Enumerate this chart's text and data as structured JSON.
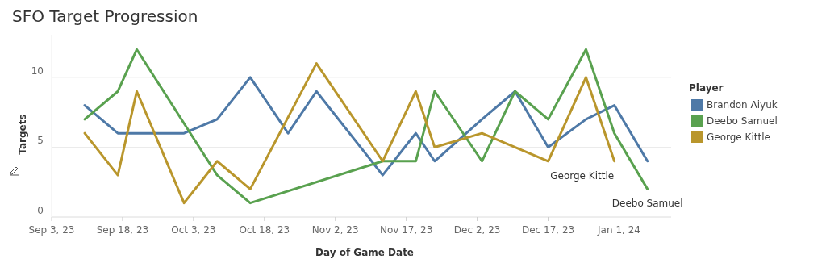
{
  "chart_data": {
    "type": "line",
    "title": "SFO Target Progression",
    "xlabel": "Day of Game Date",
    "ylabel": "Targets",
    "legend_title": "Player",
    "legend": "right",
    "grid": "y",
    "ylim": [
      0,
      13
    ],
    "yticks": [
      0,
      5,
      10
    ],
    "xlim": [
      "2023-09-03",
      "2024-01-12"
    ],
    "xticks": [
      {
        "value": "2023-09-03",
        "label": "Sep 3, 23"
      },
      {
        "value": "2023-09-18",
        "label": "Sep 18, 23"
      },
      {
        "value": "2023-10-03",
        "label": "Oct 3, 23"
      },
      {
        "value": "2023-10-18",
        "label": "Oct 18, 23"
      },
      {
        "value": "2023-11-02",
        "label": "Nov 2, 23"
      },
      {
        "value": "2023-11-17",
        "label": "Nov 17, 23"
      },
      {
        "value": "2023-12-02",
        "label": "Dec 2, 23"
      },
      {
        "value": "2023-12-17",
        "label": "Dec 17, 23"
      },
      {
        "value": "2024-01-01",
        "label": "Jan 1, 24"
      }
    ],
    "series": [
      {
        "name": "Brandon Aiyuk",
        "color": "#4e79a7",
        "x": [
          "2023-09-10",
          "2023-09-17",
          "2023-09-21",
          "2023-10-01",
          "2023-10-08",
          "2023-10-15",
          "2023-10-23",
          "2023-10-29",
          "2023-11-12",
          "2023-11-19",
          "2023-11-23",
          "2023-12-03",
          "2023-12-10",
          "2023-12-17",
          "2023-12-25",
          "2023-12-31",
          "2024-01-07"
        ],
        "values": [
          8,
          6,
          6,
          6,
          7,
          10,
          6,
          9,
          3,
          6,
          4,
          7,
          9,
          5,
          7,
          8,
          4
        ]
      },
      {
        "name": "Deebo Samuel",
        "color": "#59a14f",
        "x": [
          "2023-09-10",
          "2023-09-17",
          "2023-09-21",
          "2023-10-08",
          "2023-10-15",
          "2023-11-12",
          "2023-11-19",
          "2023-11-23",
          "2023-12-03",
          "2023-12-10",
          "2023-12-17",
          "2023-12-25",
          "2023-12-31",
          "2024-01-07"
        ],
        "values": [
          7,
          9,
          12,
          3,
          1,
          4,
          4,
          9,
          4,
          9,
          7,
          12,
          6,
          2
        ]
      },
      {
        "name": "George Kittle",
        "color": "#b9962c",
        "x": [
          "2023-09-10",
          "2023-09-17",
          "2023-09-21",
          "2023-10-01",
          "2023-10-08",
          "2023-10-15",
          "2023-10-29",
          "2023-11-12",
          "2023-11-19",
          "2023-11-23",
          "2023-12-03",
          "2023-12-17",
          "2023-12-25",
          "2023-12-31"
        ],
        "values": [
          6,
          3,
          9,
          1,
          4,
          2,
          11,
          4,
          9,
          5,
          6,
          4,
          10,
          4
        ]
      }
    ],
    "annotations": [
      {
        "text": "George Kittle",
        "x": "2023-12-31",
        "y": 4
      },
      {
        "text": "Deebo Samuel",
        "x": "2024-01-07",
        "y": 2
      }
    ]
  }
}
